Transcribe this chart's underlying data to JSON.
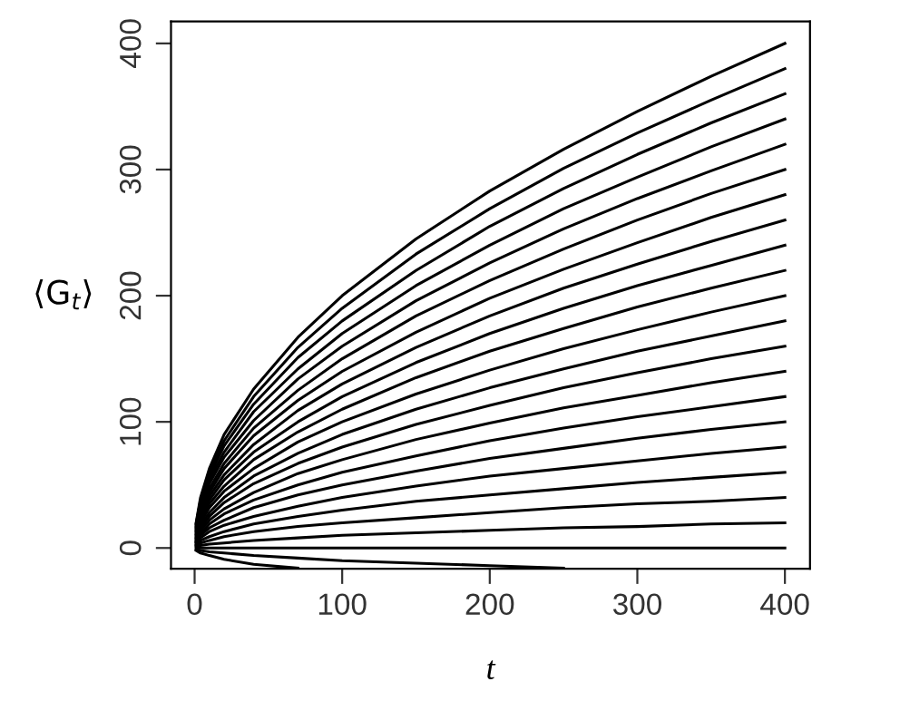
{
  "chart_data": {
    "type": "line",
    "xlabel": "t",
    "ylabel": "⟨G$_{t}$⟩",
    "x": [
      1,
      4,
      10,
      20,
      40,
      70,
      100,
      150,
      200,
      250,
      300,
      350,
      400
    ],
    "xlim": [
      -16,
      417
    ],
    "ylim": [
      -16.5,
      417.5
    ],
    "xticks": [
      0,
      100,
      200,
      300,
      400
    ],
    "yticks": [
      0,
      100,
      200,
      300,
      400
    ],
    "grid": false,
    "legend": false,
    "marker": "none",
    "line_style": "solid",
    "series": [
      {
        "color": "#000000",
        "values": [
          20,
          40,
          63,
          90,
          126,
          167,
          200,
          245,
          283,
          316,
          346,
          374,
          400
        ]
      },
      {
        "color": "#000000",
        "values": [
          19,
          38,
          60,
          85,
          120,
          159,
          190,
          233,
          269,
          301,
          329,
          355,
          380
        ]
      },
      {
        "color": "#000000",
        "values": [
          18,
          36,
          57,
          81,
          114,
          151,
          180,
          220,
          255,
          285,
          312,
          337,
          360
        ]
      },
      {
        "color": "#000000",
        "values": [
          17,
          34,
          54,
          76,
          108,
          142,
          170,
          208,
          240,
          269,
          294,
          318,
          340
        ]
      },
      {
        "color": "#000000",
        "values": [
          16,
          32,
          51,
          72,
          101,
          134,
          160,
          196,
          226,
          253,
          277,
          299,
          320
        ]
      },
      {
        "color": "#000000",
        "values": [
          15,
          30,
          47,
          67,
          95,
          125,
          150,
          184,
          212,
          237,
          260,
          281,
          300
        ]
      },
      {
        "color": "#000000",
        "values": [
          14,
          28,
          44,
          63,
          89,
          117,
          140,
          171,
          198,
          221,
          242,
          262,
          280
        ]
      },
      {
        "color": "#000000",
        "values": [
          13,
          26,
          41,
          58,
          82,
          109,
          130,
          159,
          184,
          206,
          225,
          243,
          260
        ]
      },
      {
        "color": "#000000",
        "values": [
          12,
          24,
          38,
          54,
          76,
          100,
          120,
          147,
          170,
          190,
          208,
          224,
          240
        ]
      },
      {
        "color": "#000000",
        "values": [
          11,
          22,
          35,
          49,
          70,
          92,
          110,
          135,
          156,
          174,
          191,
          206,
          220
        ]
      },
      {
        "color": "#000000",
        "values": [
          10,
          20,
          32,
          45,
          63,
          84,
          100,
          122,
          141,
          158,
          173,
          187,
          200
        ]
      },
      {
        "color": "#000000",
        "values": [
          9,
          18,
          28,
          40,
          57,
          75,
          90,
          110,
          127,
          142,
          156,
          168,
          180
        ]
      },
      {
        "color": "#000000",
        "values": [
          8,
          16,
          25,
          36,
          51,
          67,
          80,
          98,
          113,
          127,
          139,
          150,
          160
        ]
      },
      {
        "color": "#000000",
        "values": [
          7,
          14,
          22,
          31,
          44,
          59,
          70,
          86,
          99,
          111,
          121,
          131,
          140
        ]
      },
      {
        "color": "#000000",
        "values": [
          6,
          12,
          19,
          27,
          38,
          50,
          60,
          73,
          85,
          95,
          104,
          112,
          120
        ]
      },
      {
        "color": "#000000",
        "values": [
          5,
          10,
          16,
          22,
          32,
          42,
          50,
          61,
          71,
          79,
          87,
          94,
          100
        ]
      },
      {
        "color": "#000000",
        "values": [
          4,
          8,
          13,
          18,
          25,
          33,
          40,
          49,
          57,
          63,
          69,
          75,
          80
        ]
      },
      {
        "color": "#000000",
        "values": [
          3,
          6,
          9,
          13,
          19,
          25,
          30,
          37,
          42,
          47,
          52,
          56,
          60
        ]
      },
      {
        "color": "#000000",
        "values": [
          2,
          4,
          6,
          9,
          13,
          17,
          20,
          24,
          28,
          32,
          35,
          37,
          40
        ]
      },
      {
        "color": "#000000",
        "values": [
          1,
          2,
          3,
          4,
          6,
          8,
          10,
          12,
          14,
          16,
          17,
          19,
          20
        ]
      },
      {
        "color": "#000000",
        "values": [
          0,
          0,
          0,
          0,
          0,
          0,
          0,
          0,
          0,
          0,
          0,
          0,
          0
        ]
      },
      {
        "color": "#000000",
        "values": [
          -1,
          -2,
          -3,
          -4,
          -6,
          -8,
          -10,
          -12,
          -14,
          -16,
          null,
          null,
          null
        ]
      },
      {
        "color": "#000000",
        "values": [
          -2,
          -4,
          -6,
          -9,
          -13,
          -16,
          null,
          null,
          null,
          null,
          null,
          null,
          null
        ]
      }
    ]
  }
}
